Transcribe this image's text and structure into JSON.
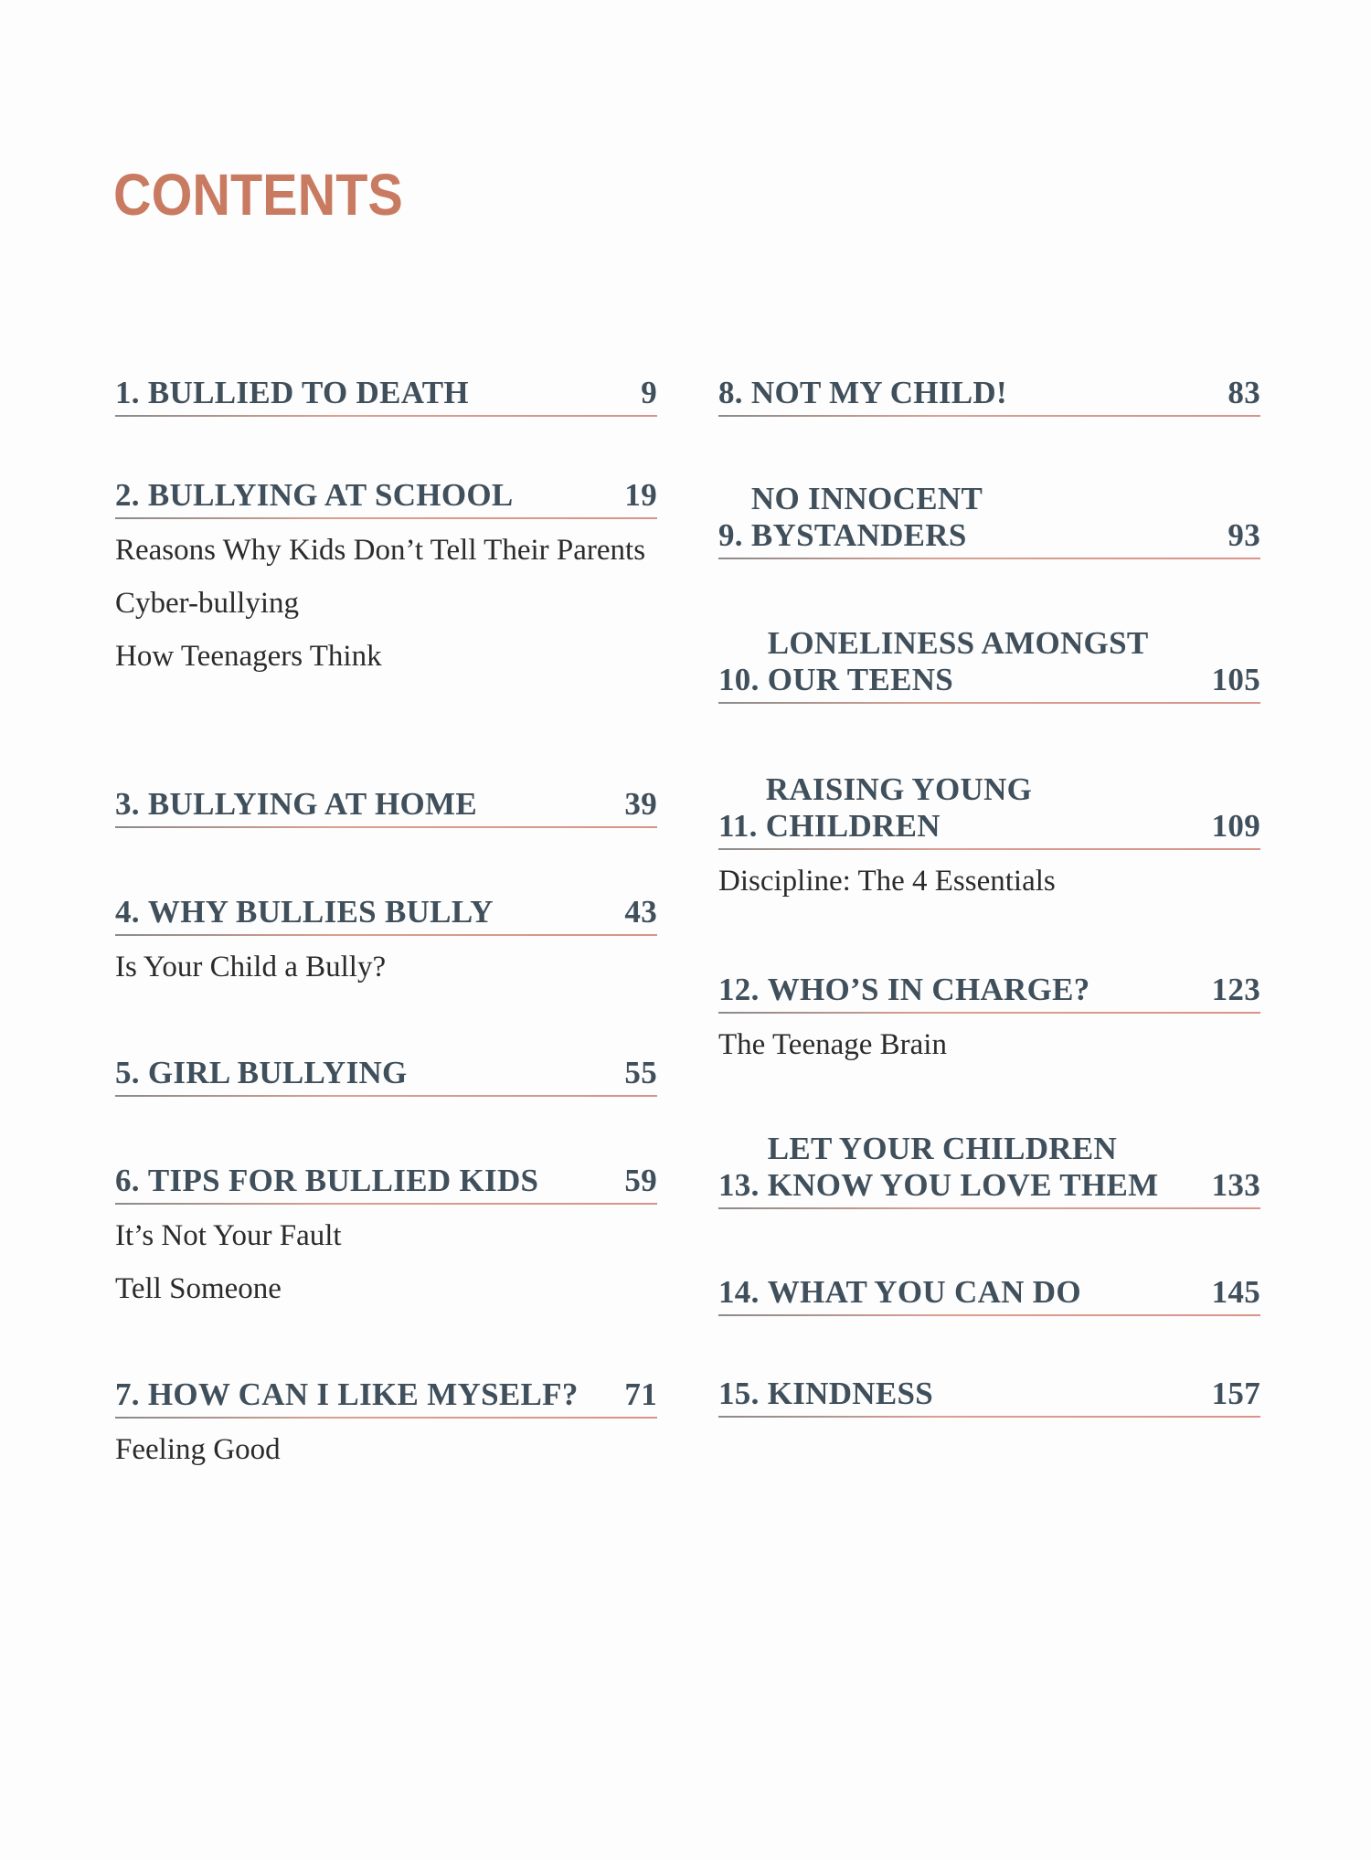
{
  "colors": {
    "accent": "#c97b62",
    "heading": "#3f4f5b"
  },
  "title": "CONTENTS",
  "entries": [
    {
      "num": "1. ",
      "lines": [
        "BULLIED TO DEATH"
      ],
      "page": "9",
      "subs": []
    },
    {
      "num": "2. ",
      "lines": [
        "BULLYING AT SCHOOL"
      ],
      "page": "19",
      "subs": [
        "Reasons Why Kids Don’t Tell Their Parents",
        "Cyber-bullying",
        "How Teenagers Think"
      ]
    },
    {
      "num": "3. ",
      "lines": [
        "BULLYING AT HOME"
      ],
      "page": "39",
      "subs": []
    },
    {
      "num": "4. ",
      "lines": [
        "WHY BULLIES BULLY"
      ],
      "page": "43",
      "subs": [
        "Is Your Child a Bully?"
      ]
    },
    {
      "num": "5. ",
      "lines": [
        "GIRL BULLYING"
      ],
      "page": "55",
      "subs": []
    },
    {
      "num": "6. ",
      "lines": [
        "TIPS FOR BULLIED KIDS"
      ],
      "page": "59",
      "subs": [
        "It’s Not Your Fault",
        "Tell Someone"
      ]
    },
    {
      "num": "7. ",
      "lines": [
        "HOW CAN I LIKE MYSELF?"
      ],
      "page": "71",
      "subs": [
        "Feeling Good"
      ]
    },
    {
      "num": "8. ",
      "lines": [
        "NOT MY CHILD!"
      ],
      "page": "83",
      "subs": []
    },
    {
      "num": "9. ",
      "lines": [
        "NO INNOCENT",
        "BYSTANDERS"
      ],
      "page": "93",
      "subs": []
    },
    {
      "num": "10. ",
      "lines": [
        "LONELINESS AMONGST",
        "OUR TEENS"
      ],
      "page": "105",
      "subs": []
    },
    {
      "num": "11. ",
      "lines": [
        "RAISING YOUNG",
        "CHILDREN"
      ],
      "page": "109",
      "subs": [
        "Discipline: The 4 Essentials"
      ]
    },
    {
      "num": "12. ",
      "lines": [
        "WHO’S IN CHARGE?"
      ],
      "page": "123",
      "subs": [
        "The Teenage Brain"
      ]
    },
    {
      "num": "13. ",
      "lines": [
        "LET YOUR CHILDREN",
        "KNOW YOU LOVE THEM"
      ],
      "page": "133",
      "subs": []
    },
    {
      "num": "14. ",
      "lines": [
        "WHAT YOU CAN DO"
      ],
      "page": "145",
      "subs": []
    },
    {
      "num": "15. ",
      "lines": [
        "KINDNESS"
      ],
      "page": "157",
      "subs": []
    }
  ]
}
